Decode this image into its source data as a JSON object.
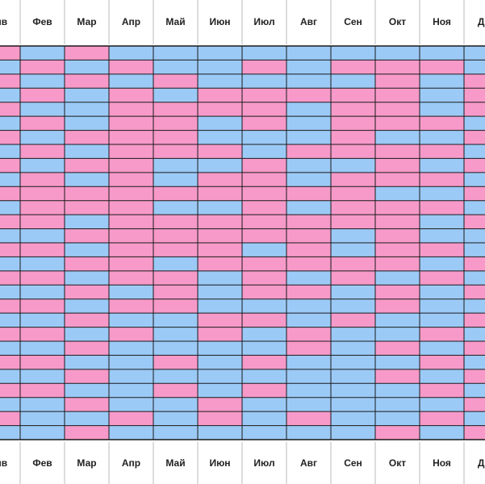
{
  "months": [
    "Янв",
    "Фев",
    "Мар",
    "Апр",
    "Май",
    "Июн",
    "Июл",
    "Авг",
    "Сен",
    "Окт",
    "Ноя",
    "Дек"
  ],
  "colors": {
    "P": "#f79ac9",
    "B": "#9ccaf7"
  },
  "cells": [
    "PBPBBBBBBBBB",
    "BPBPBBPBPPPB",
    "PBPBPBBBBPBP",
    "BPBPBPPPPPBP",
    "PBBPPPPBPPBP",
    "BPBPPBPBPPPB",
    "PBPPPBBBPBBP",
    "BPBPPPBPPPPB",
    "PBPPBBPBBPBP",
    "BPBPBPPBPPPB",
    "PPPPPPPPPBBP",
    "BPPPBBPBPPPB",
    "PPBPPPPPPPBP",
    "BBPPPPPPBPBB",
    "PPBPPPBPBPPB",
    "BBPPBPPPPPBP",
    "PPBPPBPBPBPB",
    "BBPBPBPPBPBP",
    "PPBPPBBBBPBB",
    "BBPBBPPBPBBP",
    "PPBPBPBPBBPB",
    "BBPBBBBPBPBP",
    "PPBBPBPBBBPB",
    "BBPBBBBBBPBP",
    "PPBBPBPBBBPB",
    "BBPBBPBBBBBP",
    "PBBPBPBPBBPB",
    "BBPBBBBBBPBP"
  ]
}
